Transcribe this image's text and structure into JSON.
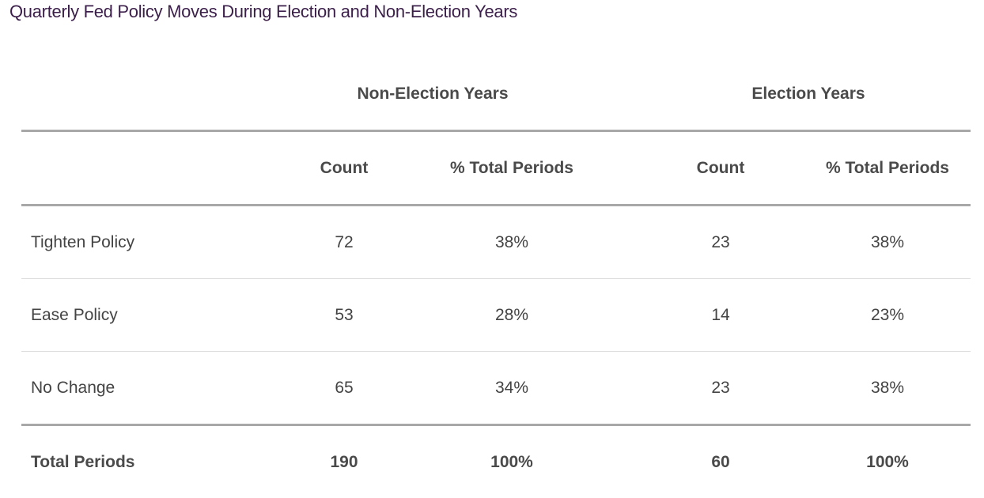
{
  "chart_data": {
    "type": "table",
    "title": "Quarterly Fed Policy Moves During Election and Non-Election Years",
    "column_groups": [
      "Non-Election Years",
      "Election Years"
    ],
    "columns": [
      "Count",
      "% Total Periods",
      "Count",
      "% Total Periods"
    ],
    "rows": [
      {
        "label": "Tighten Policy",
        "values": [
          "72",
          "38%",
          "23",
          "38%"
        ]
      },
      {
        "label": "Ease Policy",
        "values": [
          "53",
          "28%",
          "14",
          "23%"
        ]
      },
      {
        "label": "No Change",
        "values": [
          "65",
          "34%",
          "23",
          "38%"
        ]
      }
    ],
    "total": {
      "label": "Total Periods",
      "values": [
        "190",
        "100%",
        "60",
        "100%"
      ]
    }
  }
}
